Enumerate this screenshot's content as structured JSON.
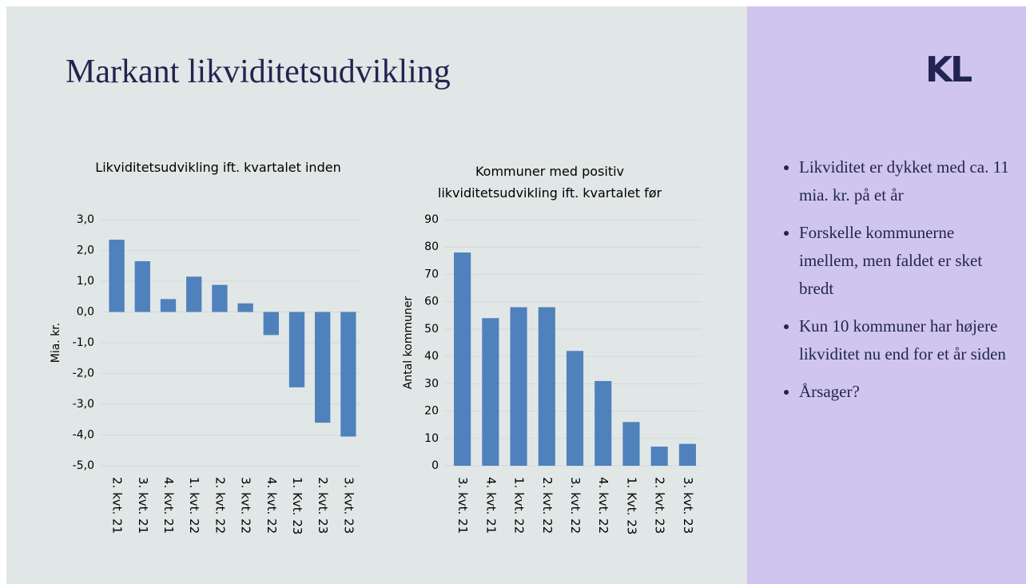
{
  "title": "Markant likviditetsudvikling",
  "logo": "KL",
  "bullets": [
    "Likviditet er dykket med ca. 11 mia. kr. på et år",
    "Forskelle kommunerne imellem, men faldet er sket bredt",
    "Kun 10 kommuner har højere likviditet nu end for et år siden",
    "Årsager?"
  ],
  "chart_data": [
    {
      "type": "bar",
      "title": "Likviditetsudvikling ift. kvartalet inden",
      "y_label": "Mia. kr.",
      "categories": [
        "2. kvt. 21",
        "3. kvt. 21",
        "4. kvt. 21",
        "1. kvt. 22",
        "2. kvt. 22",
        "3. kvt. 22",
        "4. kvt. 22",
        "1. Kvt. 23",
        "2. kvt. 23",
        "3. kvt. 23"
      ],
      "values": [
        2.35,
        1.65,
        0.42,
        1.15,
        0.88,
        0.28,
        -0.75,
        -2.45,
        -3.6,
        -4.05
      ],
      "color": "#4f81bd",
      "ylim": [
        -5,
        3
      ],
      "yticks": [
        {
          "value": -5,
          "label": "-5,0"
        },
        {
          "value": -4,
          "label": "-4,0"
        },
        {
          "value": -3,
          "label": "-3,0"
        },
        {
          "value": -2,
          "label": "-2,0"
        },
        {
          "value": -1,
          "label": "-1,0"
        },
        {
          "value": 0,
          "label": "0,0"
        },
        {
          "value": 1,
          "label": "1,0"
        },
        {
          "value": 2,
          "label": "2,0"
        },
        {
          "value": 3,
          "label": "3,0"
        }
      ],
      "grid": true
    },
    {
      "type": "bar",
      "title": "Kommuner med positiv likviditetsudvikling ift. kvartalet før",
      "y_label": "Antal kommuner",
      "categories": [
        "3. kvt. 21",
        "4. kvt. 21",
        "1. kvt. 22",
        "2. kvt. 22",
        "3. kvt. 22",
        "4. kvt. 22",
        "1. Kvt. 23",
        "2. kvt. 23",
        "3. kvt. 23"
      ],
      "values": [
        78,
        54,
        58,
        58,
        42,
        31,
        16,
        7,
        8
      ],
      "color": "#4f81bd",
      "ylim": [
        0,
        90
      ],
      "yticks": [
        0,
        10,
        20,
        30,
        40,
        50,
        60,
        70,
        80,
        90
      ],
      "grid": true
    }
  ]
}
